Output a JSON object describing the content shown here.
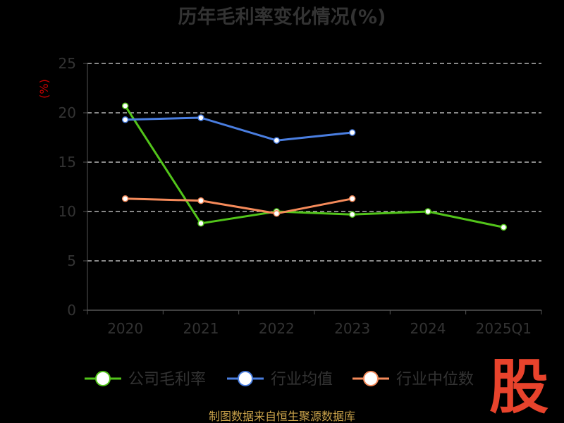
{
  "chart_data": {
    "type": "line",
    "title": "历年毛利率变化情况(%)",
    "ylabel": "(%)",
    "xlabel": "",
    "categories": [
      "2020",
      "2021",
      "2022",
      "2023",
      "2024",
      "2025Q1"
    ],
    "ylim": [
      0,
      25
    ],
    "yticks": [
      "0",
      "5",
      "10",
      "15",
      "20",
      "25"
    ],
    "grid": true,
    "legend_position": "bottom",
    "series": [
      {
        "name": "公司毛利率",
        "color": "#52c41a",
        "values": [
          20.7,
          8.8,
          10.0,
          9.7,
          10.0,
          8.4
        ]
      },
      {
        "name": "行业均值",
        "color": "#4a7ee0",
        "values": [
          19.3,
          19.5,
          17.2,
          18.0,
          null,
          null
        ]
      },
      {
        "name": "行业中位数",
        "color": "#f58a5a",
        "values": [
          11.3,
          11.1,
          9.8,
          11.3,
          null,
          null
        ]
      }
    ]
  },
  "source": "制图数据来自恒生聚源数据库",
  "brand_char": "股"
}
